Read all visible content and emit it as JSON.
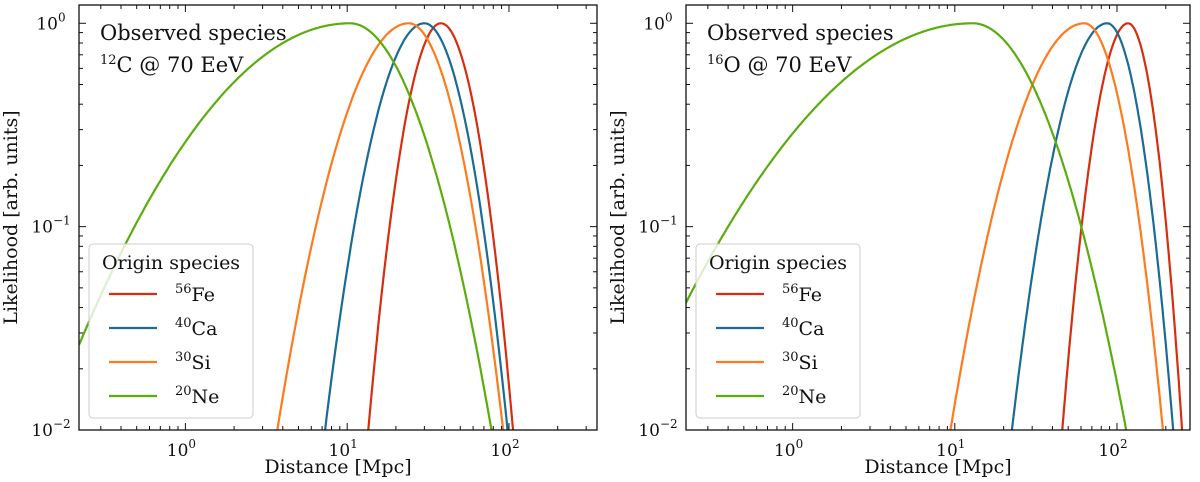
{
  "chart_data": [
    {
      "type": "line",
      "xscale": "log",
      "yscale": "log",
      "xlim": [
        0.22,
        350
      ],
      "ylim": [
        0.01,
        1.23
      ],
      "xlabel": "Distance [Mpc]",
      "ylabel": "Likelihood [arb. units]",
      "xticks": [
        {
          "base": "10",
          "exp": "0",
          "value": 1
        },
        {
          "base": "10",
          "exp": "1",
          "value": 10
        },
        {
          "base": "10",
          "exp": "2",
          "value": 100
        }
      ],
      "yticks": [
        {
          "base": "10",
          "exp": "−2",
          "value": 0.01
        },
        {
          "base": "10",
          "exp": "−1",
          "value": 0.1
        },
        {
          "base": "10",
          "exp": "0",
          "value": 1
        }
      ],
      "annotation": {
        "line1": "Observed species",
        "mass": "12",
        "rest": "C @ 70 EeV"
      },
      "legend": {
        "title": "Origin species",
        "placement": "lower-left"
      },
      "series": [
        {
          "name_mass": "56",
          "name_el": "Fe",
          "color": "#d62e0e",
          "points": [
            [
              13.5,
              0.01
            ],
            [
              38,
              1.0
            ],
            [
              106,
              0.01
            ]
          ]
        },
        {
          "name_mass": "40",
          "name_el": "Ca",
          "color": "#1a6b96",
          "points": [
            [
              7.3,
              0.01
            ],
            [
              30,
              1.0
            ],
            [
              98,
              0.01
            ]
          ]
        },
        {
          "name_mass": "30",
          "name_el": "Si",
          "color": "#ff7a1c",
          "points": [
            [
              3.7,
              0.01
            ],
            [
              24,
              1.0
            ],
            [
              92,
              0.01
            ]
          ]
        },
        {
          "name_mass": "20",
          "name_el": "Ne",
          "color": "#5aad0c",
          "points": [
            [
              0.3,
              0.046
            ],
            [
              10.4,
              1.0
            ],
            [
              78,
              0.01
            ]
          ]
        }
      ]
    },
    {
      "type": "line",
      "xscale": "log",
      "yscale": "log",
      "xlim": [
        0.22,
        282
      ],
      "ylim": [
        0.01,
        1.23
      ],
      "xlabel": "Distance [Mpc]",
      "ylabel": "Likelihood [arb. units]",
      "xticks": [
        {
          "base": "10",
          "exp": "0",
          "value": 1
        },
        {
          "base": "10",
          "exp": "1",
          "value": 10
        },
        {
          "base": "10",
          "exp": "2",
          "value": 100
        }
      ],
      "yticks": [
        {
          "base": "10",
          "exp": "−2",
          "value": 0.01
        },
        {
          "base": "10",
          "exp": "−1",
          "value": 0.1
        },
        {
          "base": "10",
          "exp": "0",
          "value": 1
        }
      ],
      "annotation": {
        "line1": "Observed species",
        "mass": "16",
        "rest": "O @ 70 EeV"
      },
      "legend": {
        "title": "Origin species",
        "placement": "lower-left"
      },
      "series": [
        {
          "name_mass": "56",
          "name_el": "Fe",
          "color": "#d62e0e",
          "points": [
            [
              46,
              0.01
            ],
            [
              117,
              1.0
            ],
            [
              252,
              0.01
            ]
          ]
        },
        {
          "name_mass": "40",
          "name_el": "Ca",
          "color": "#1a6b96",
          "points": [
            [
              22.5,
              0.01
            ],
            [
              87,
              1.0
            ],
            [
              222,
              0.01
            ]
          ]
        },
        {
          "name_mass": "30",
          "name_el": "Si",
          "color": "#ff7a1c",
          "points": [
            [
              9.4,
              0.01
            ],
            [
              63,
              1.0
            ],
            [
              192,
              0.01
            ]
          ]
        },
        {
          "name_mass": "20",
          "name_el": "Ne",
          "color": "#5aad0c",
          "points": [
            [
              0.4,
              0.1
            ],
            [
              12.9,
              1.0
            ],
            [
              114,
              0.01
            ]
          ]
        }
      ]
    }
  ]
}
